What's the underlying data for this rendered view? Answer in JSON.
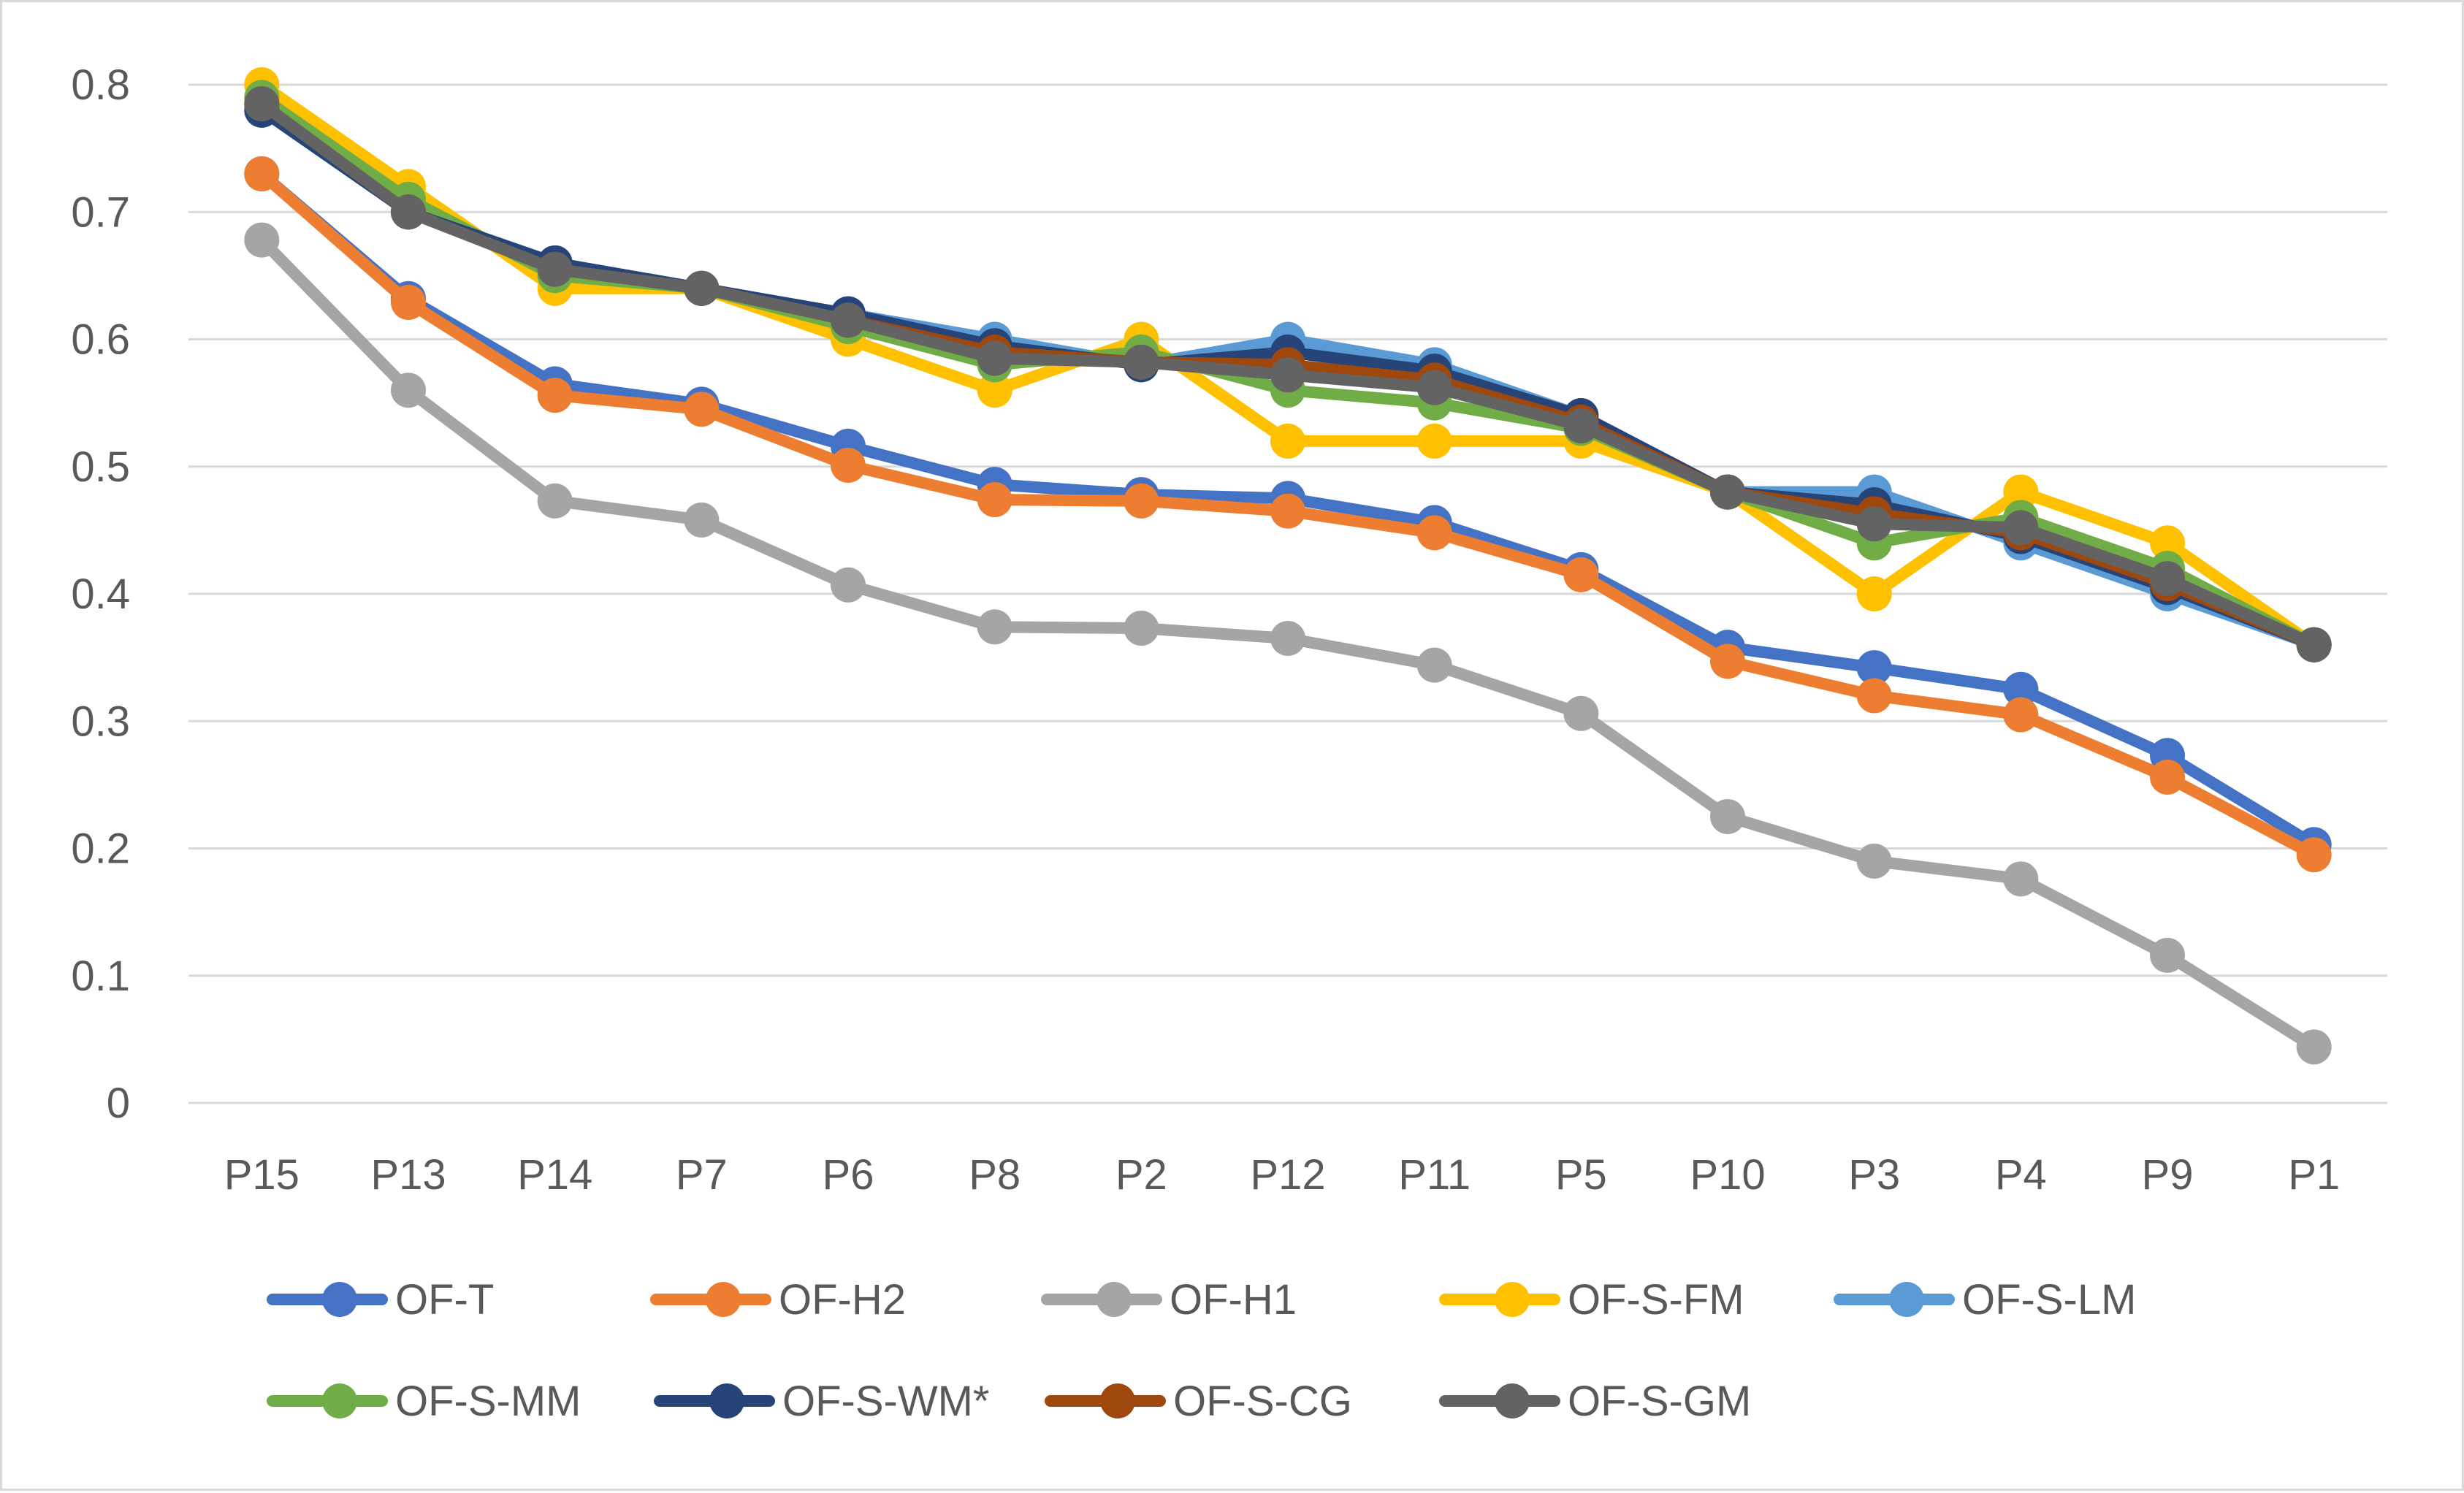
{
  "chart_data": {
    "type": "line",
    "title": "",
    "xlabel": "",
    "ylabel": "",
    "ylim": [
      0,
      0.8
    ],
    "yticks": [
      "0",
      "0.1",
      "0.2",
      "0.3",
      "0.4",
      "0.5",
      "0.6",
      "0.7",
      "0.8"
    ],
    "grid": "horizontal",
    "legend_position": "bottom",
    "categories": [
      "P15",
      "P13",
      "P14",
      "P7",
      "P6",
      "P8",
      "P2",
      "P12",
      "P11",
      "P5",
      "P10",
      "P3",
      "P4",
      "P9",
      "P1"
    ],
    "series": [
      {
        "name": "OF-T",
        "color": "#4472c4",
        "values": [
          0.73,
          0.632,
          0.565,
          0.549,
          0.516,
          0.486,
          0.478,
          0.475,
          0.456,
          0.419,
          0.358,
          0.342,
          0.325,
          0.273,
          0.203
        ]
      },
      {
        "name": "OF-H2",
        "color": "#ed7d31",
        "values": [
          0.73,
          0.629,
          0.556,
          0.545,
          0.501,
          0.474,
          0.473,
          0.465,
          0.448,
          0.415,
          0.347,
          0.32,
          0.305,
          0.256,
          0.195
        ]
      },
      {
        "name": "OF-H1",
        "color": "#a5a5a5",
        "values": [
          0.678,
          0.56,
          0.473,
          0.458,
          0.407,
          0.374,
          0.373,
          0.365,
          0.344,
          0.306,
          0.225,
          0.19,
          0.176,
          0.116,
          0.044
        ]
      },
      {
        "name": "OF-S-FM",
        "color": "#ffc000",
        "values": [
          0.8,
          0.72,
          0.64,
          0.64,
          0.6,
          0.56,
          0.6,
          0.52,
          0.52,
          0.52,
          0.48,
          0.4,
          0.48,
          0.44,
          0.36
        ]
      },
      {
        "name": "OF-S-LM",
        "color": "#5b9bd5",
        "values": [
          0.78,
          0.7,
          0.66,
          0.64,
          0.62,
          0.6,
          0.58,
          0.6,
          0.58,
          0.54,
          0.48,
          0.48,
          0.44,
          0.4,
          0.36
        ]
      },
      {
        "name": "OF-S-MM",
        "color": "#70ad47",
        "values": [
          0.79,
          0.71,
          0.65,
          0.64,
          0.61,
          0.58,
          0.59,
          0.56,
          0.55,
          0.53,
          0.48,
          0.44,
          0.46,
          0.42,
          0.36
        ]
      },
      {
        "name": "OF-S-WM*",
        "color": "#264478",
        "values": [
          0.78,
          0.7,
          0.66,
          0.64,
          0.62,
          0.595,
          0.58,
          0.59,
          0.575,
          0.54,
          0.48,
          0.47,
          0.445,
          0.405,
          0.36
        ]
      },
      {
        "name": "OF-S-CG",
        "color": "#9e480e",
        "values": [
          0.785,
          0.7,
          0.655,
          0.64,
          0.615,
          0.59,
          0.582,
          0.58,
          0.568,
          0.535,
          0.48,
          0.463,
          0.448,
          0.408,
          0.36
        ]
      },
      {
        "name": "OF-S-GM",
        "color": "#636363",
        "values": [
          0.785,
          0.7,
          0.655,
          0.64,
          0.615,
          0.585,
          0.582,
          0.572,
          0.562,
          0.532,
          0.48,
          0.455,
          0.452,
          0.412,
          0.36
        ]
      }
    ]
  }
}
